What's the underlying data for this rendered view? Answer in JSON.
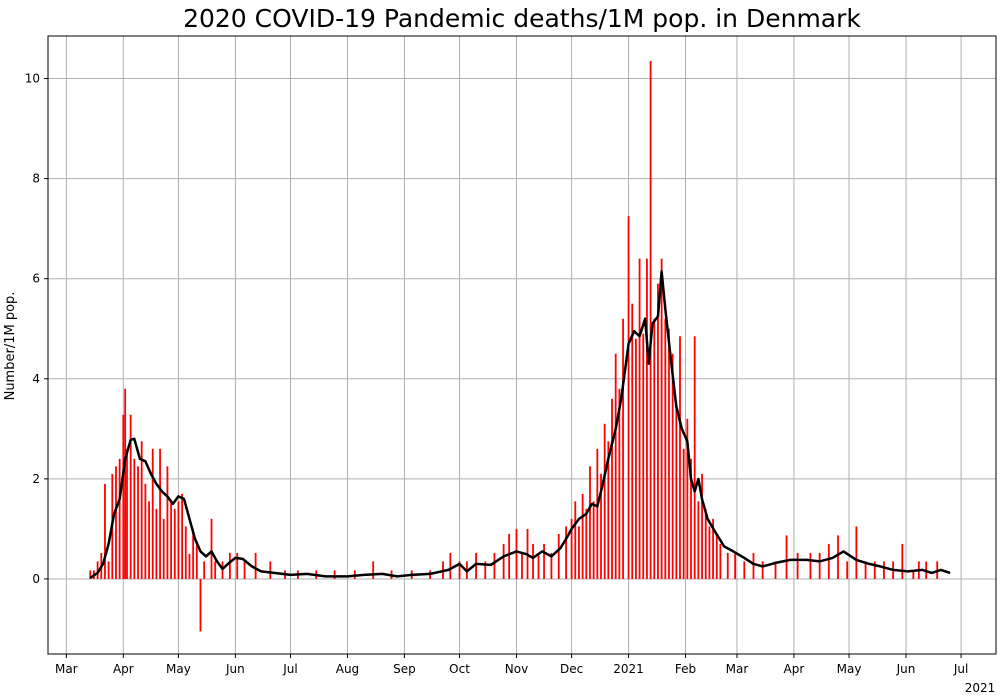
{
  "chart_data": {
    "type": "bar",
    "title": "2020 COVID-19 Pandemic deaths/1M pop. in Denmark",
    "xlabel": "",
    "ylabel": "Number/1M pop.",
    "ylim": [
      -1.5,
      10.85
    ],
    "y_ticks": [
      0,
      2,
      4,
      6,
      8,
      10
    ],
    "grid": true,
    "x_start_date": "2020-02-20",
    "x_end_date": "2021-07-20",
    "x_ticks": [
      {
        "date": "2020-03-01",
        "label": "Mar"
      },
      {
        "date": "2020-04-01",
        "label": "Apr"
      },
      {
        "date": "2020-05-01",
        "label": "May"
      },
      {
        "date": "2020-06-01",
        "label": "Jun"
      },
      {
        "date": "2020-07-01",
        "label": "Jul"
      },
      {
        "date": "2020-08-01",
        "label": "Aug"
      },
      {
        "date": "2020-09-01",
        "label": "Sep"
      },
      {
        "date": "2020-10-01",
        "label": "Oct"
      },
      {
        "date": "2020-11-01",
        "label": "Nov"
      },
      {
        "date": "2020-12-01",
        "label": "Dec"
      },
      {
        "date": "2021-01-01",
        "label": "2021"
      },
      {
        "date": "2021-02-01",
        "label": "Feb"
      },
      {
        "date": "2021-03-01",
        "label": "Mar"
      },
      {
        "date": "2021-04-01",
        "label": "Apr"
      },
      {
        "date": "2021-05-01",
        "label": "May"
      },
      {
        "date": "2021-06-01",
        "label": "Jun"
      },
      {
        "date": "2021-07-01",
        "label": "Jul"
      }
    ],
    "x_year_label": "2021",
    "series": [
      {
        "type": "bar",
        "color": "#ff0000",
        "points": [
          [
            "2020-03-14",
            0.17
          ],
          [
            "2020-03-16",
            0.17
          ],
          [
            "2020-03-18",
            0.35
          ],
          [
            "2020-03-20",
            0.52
          ],
          [
            "2020-03-22",
            1.9
          ],
          [
            "2020-03-24",
            0.35
          ],
          [
            "2020-03-26",
            2.1
          ],
          [
            "2020-03-28",
            2.25
          ],
          [
            "2020-03-30",
            2.4
          ],
          [
            "2020-04-01",
            3.28
          ],
          [
            "2020-04-02",
            3.8
          ],
          [
            "2020-04-03",
            2.6
          ],
          [
            "2020-04-05",
            3.28
          ],
          [
            "2020-04-07",
            2.4
          ],
          [
            "2020-04-09",
            2.25
          ],
          [
            "2020-04-11",
            2.75
          ],
          [
            "2020-04-13",
            1.9
          ],
          [
            "2020-04-15",
            1.55
          ],
          [
            "2020-04-17",
            2.6
          ],
          [
            "2020-04-19",
            1.4
          ],
          [
            "2020-04-21",
            2.6
          ],
          [
            "2020-04-23",
            1.2
          ],
          [
            "2020-04-25",
            2.25
          ],
          [
            "2020-04-27",
            1.55
          ],
          [
            "2020-04-29",
            1.4
          ],
          [
            "2020-05-01",
            1.55
          ],
          [
            "2020-05-03",
            1.7
          ],
          [
            "2020-05-05",
            1.05
          ],
          [
            "2020-05-07",
            0.5
          ],
          [
            "2020-05-09",
            1.0
          ],
          [
            "2020-05-11",
            0.7
          ],
          [
            "2020-05-13",
            -1.05
          ],
          [
            "2020-05-15",
            0.35
          ],
          [
            "2020-05-19",
            1.2
          ],
          [
            "2020-05-21",
            0.35
          ],
          [
            "2020-05-25",
            0.35
          ],
          [
            "2020-05-29",
            0.52
          ],
          [
            "2020-06-02",
            0.52
          ],
          [
            "2020-06-06",
            0.35
          ],
          [
            "2020-06-12",
            0.52
          ],
          [
            "2020-06-20",
            0.35
          ],
          [
            "2020-06-28",
            0.17
          ],
          [
            "2020-07-05",
            0.17
          ],
          [
            "2020-07-15",
            0.17
          ],
          [
            "2020-07-25",
            0.17
          ],
          [
            "2020-08-05",
            0.17
          ],
          [
            "2020-08-15",
            0.35
          ],
          [
            "2020-08-25",
            0.17
          ],
          [
            "2020-09-05",
            0.17
          ],
          [
            "2020-09-15",
            0.17
          ],
          [
            "2020-09-22",
            0.35
          ],
          [
            "2020-09-26",
            0.52
          ],
          [
            "2020-10-01",
            0.35
          ],
          [
            "2020-10-05",
            0.35
          ],
          [
            "2020-10-10",
            0.52
          ],
          [
            "2020-10-15",
            0.35
          ],
          [
            "2020-10-20",
            0.52
          ],
          [
            "2020-10-25",
            0.7
          ],
          [
            "2020-10-28",
            0.9
          ],
          [
            "2020-11-01",
            1.0
          ],
          [
            "2020-11-04",
            0.52
          ],
          [
            "2020-11-07",
            1.0
          ],
          [
            "2020-11-10",
            0.7
          ],
          [
            "2020-11-13",
            0.52
          ],
          [
            "2020-11-16",
            0.7
          ],
          [
            "2020-11-20",
            0.52
          ],
          [
            "2020-11-24",
            0.9
          ],
          [
            "2020-11-28",
            1.05
          ],
          [
            "2020-12-01",
            1.2
          ],
          [
            "2020-12-03",
            1.55
          ],
          [
            "2020-12-05",
            1.05
          ],
          [
            "2020-12-07",
            1.7
          ],
          [
            "2020-12-09",
            1.4
          ],
          [
            "2020-12-11",
            2.25
          ],
          [
            "2020-12-13",
            1.55
          ],
          [
            "2020-12-15",
            2.6
          ],
          [
            "2020-12-17",
            2.1
          ],
          [
            "2020-12-19",
            3.1
          ],
          [
            "2020-12-21",
            2.75
          ],
          [
            "2020-12-23",
            3.6
          ],
          [
            "2020-12-25",
            4.5
          ],
          [
            "2020-12-27",
            3.8
          ],
          [
            "2020-12-29",
            5.2
          ],
          [
            "2021-01-01",
            7.25
          ],
          [
            "2021-01-03",
            5.5
          ],
          [
            "2021-01-05",
            4.8
          ],
          [
            "2021-01-07",
            6.4
          ],
          [
            "2021-01-09",
            4.9
          ],
          [
            "2021-01-11",
            6.4
          ],
          [
            "2021-01-13",
            10.35
          ],
          [
            "2021-01-15",
            5.2
          ],
          [
            "2021-01-17",
            5.9
          ],
          [
            "2021-01-19",
            6.4
          ],
          [
            "2021-01-21",
            5.2
          ],
          [
            "2021-01-23",
            5.0
          ],
          [
            "2021-01-25",
            4.5
          ],
          [
            "2021-01-27",
            3.5
          ],
          [
            "2021-01-29",
            4.85
          ],
          [
            "2021-01-31",
            2.6
          ],
          [
            "2021-02-02",
            3.2
          ],
          [
            "2021-02-04",
            2.4
          ],
          [
            "2021-02-06",
            4.85
          ],
          [
            "2021-02-08",
            1.55
          ],
          [
            "2021-02-10",
            2.1
          ],
          [
            "2021-02-12",
            1.4
          ],
          [
            "2021-02-14",
            1.05
          ],
          [
            "2021-02-16",
            1.2
          ],
          [
            "2021-02-18",
            0.9
          ],
          [
            "2021-02-20",
            0.7
          ],
          [
            "2021-02-24",
            0.52
          ],
          [
            "2021-02-28",
            0.52
          ],
          [
            "2021-03-05",
            0.35
          ],
          [
            "2021-03-10",
            0.52
          ],
          [
            "2021-03-15",
            0.35
          ],
          [
            "2021-03-22",
            0.35
          ],
          [
            "2021-03-28",
            0.87
          ],
          [
            "2021-04-03",
            0.52
          ],
          [
            "2021-04-10",
            0.52
          ],
          [
            "2021-04-15",
            0.52
          ],
          [
            "2021-04-20",
            0.7
          ],
          [
            "2021-04-25",
            0.87
          ],
          [
            "2021-04-30",
            0.35
          ],
          [
            "2021-05-05",
            1.05
          ],
          [
            "2021-05-10",
            0.35
          ],
          [
            "2021-05-15",
            0.35
          ],
          [
            "2021-05-20",
            0.35
          ],
          [
            "2021-05-25",
            0.35
          ],
          [
            "2021-05-30",
            0.7
          ],
          [
            "2021-06-05",
            0.17
          ],
          [
            "2021-06-08",
            0.35
          ],
          [
            "2021-06-12",
            0.35
          ],
          [
            "2021-06-18",
            0.35
          ]
        ]
      },
      {
        "type": "line",
        "color": "#000000",
        "points": [
          [
            "2020-03-14",
            0.02
          ],
          [
            "2020-03-18",
            0.12
          ],
          [
            "2020-03-21",
            0.3
          ],
          [
            "2020-03-24",
            0.7
          ],
          [
            "2020-03-27",
            1.3
          ],
          [
            "2020-03-30",
            1.6
          ],
          [
            "2020-04-02",
            2.4
          ],
          [
            "2020-04-05",
            2.78
          ],
          [
            "2020-04-07",
            2.8
          ],
          [
            "2020-04-10",
            2.4
          ],
          [
            "2020-04-13",
            2.35
          ],
          [
            "2020-04-16",
            2.1
          ],
          [
            "2020-04-19",
            1.9
          ],
          [
            "2020-04-22",
            1.75
          ],
          [
            "2020-04-25",
            1.65
          ],
          [
            "2020-04-28",
            1.5
          ],
          [
            "2020-05-01",
            1.65
          ],
          [
            "2020-05-04",
            1.6
          ],
          [
            "2020-05-07",
            1.2
          ],
          [
            "2020-05-10",
            0.8
          ],
          [
            "2020-05-13",
            0.55
          ],
          [
            "2020-05-16",
            0.45
          ],
          [
            "2020-05-19",
            0.55
          ],
          [
            "2020-05-22",
            0.35
          ],
          [
            "2020-05-25",
            0.2
          ],
          [
            "2020-05-28",
            0.3
          ],
          [
            "2020-06-01",
            0.42
          ],
          [
            "2020-06-05",
            0.4
          ],
          [
            "2020-06-10",
            0.25
          ],
          [
            "2020-06-15",
            0.15
          ],
          [
            "2020-06-22",
            0.12
          ],
          [
            "2020-07-01",
            0.08
          ],
          [
            "2020-07-10",
            0.1
          ],
          [
            "2020-07-20",
            0.05
          ],
          [
            "2020-08-01",
            0.05
          ],
          [
            "2020-08-10",
            0.08
          ],
          [
            "2020-08-20",
            0.1
          ],
          [
            "2020-08-28",
            0.05
          ],
          [
            "2020-09-05",
            0.08
          ],
          [
            "2020-09-15",
            0.1
          ],
          [
            "2020-09-25",
            0.18
          ],
          [
            "2020-10-01",
            0.3
          ],
          [
            "2020-10-05",
            0.15
          ],
          [
            "2020-10-10",
            0.3
          ],
          [
            "2020-10-18",
            0.28
          ],
          [
            "2020-10-25",
            0.45
          ],
          [
            "2020-11-01",
            0.55
          ],
          [
            "2020-11-06",
            0.5
          ],
          [
            "2020-11-10",
            0.42
          ],
          [
            "2020-11-15",
            0.55
          ],
          [
            "2020-11-20",
            0.45
          ],
          [
            "2020-11-25",
            0.62
          ],
          [
            "2020-11-28",
            0.8
          ],
          [
            "2020-12-01",
            1.0
          ],
          [
            "2020-12-05",
            1.2
          ],
          [
            "2020-12-09",
            1.3
          ],
          [
            "2020-12-12",
            1.5
          ],
          [
            "2020-12-15",
            1.45
          ],
          [
            "2020-12-18",
            1.9
          ],
          [
            "2020-12-21",
            2.4
          ],
          [
            "2020-12-25",
            3.0
          ],
          [
            "2020-12-28",
            3.6
          ],
          [
            "2021-01-01",
            4.7
          ],
          [
            "2021-01-04",
            4.95
          ],
          [
            "2021-01-07",
            4.85
          ],
          [
            "2021-01-10",
            5.2
          ],
          [
            "2021-01-12",
            4.3
          ],
          [
            "2021-01-14",
            5.1
          ],
          [
            "2021-01-17",
            5.25
          ],
          [
            "2021-01-19",
            6.15
          ],
          [
            "2021-01-21",
            5.4
          ],
          [
            "2021-01-24",
            4.4
          ],
          [
            "2021-01-27",
            3.45
          ],
          [
            "2021-01-30",
            3.0
          ],
          [
            "2021-02-02",
            2.75
          ],
          [
            "2021-02-04",
            2.0
          ],
          [
            "2021-02-06",
            1.75
          ],
          [
            "2021-02-08",
            2.0
          ],
          [
            "2021-02-10",
            1.6
          ],
          [
            "2021-02-13",
            1.2
          ],
          [
            "2021-02-17",
            0.95
          ],
          [
            "2021-02-22",
            0.65
          ],
          [
            "2021-02-27",
            0.55
          ],
          [
            "2021-03-05",
            0.42
          ],
          [
            "2021-03-10",
            0.3
          ],
          [
            "2021-03-15",
            0.25
          ],
          [
            "2021-03-22",
            0.32
          ],
          [
            "2021-03-30",
            0.38
          ],
          [
            "2021-04-08",
            0.38
          ],
          [
            "2021-04-15",
            0.35
          ],
          [
            "2021-04-22",
            0.42
          ],
          [
            "2021-04-28",
            0.55
          ],
          [
            "2021-05-05",
            0.38
          ],
          [
            "2021-05-12",
            0.3
          ],
          [
            "2021-05-18",
            0.25
          ],
          [
            "2021-05-25",
            0.18
          ],
          [
            "2021-06-02",
            0.15
          ],
          [
            "2021-06-10",
            0.18
          ],
          [
            "2021-06-15",
            0.12
          ],
          [
            "2021-06-20",
            0.18
          ],
          [
            "2021-06-25",
            0.12
          ]
        ]
      }
    ]
  }
}
